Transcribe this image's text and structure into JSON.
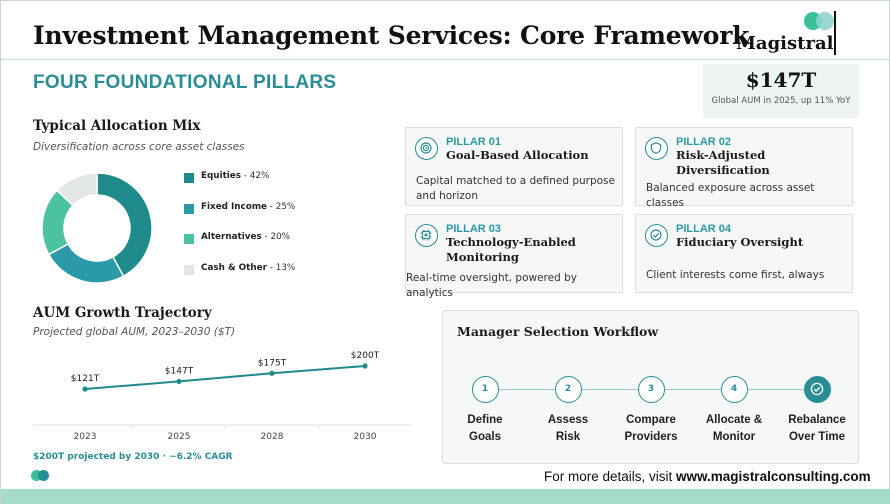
{
  "header": {
    "title": "Investment Management Services: Core Framework",
    "subtitle": "FOUR FOUNDATIONAL PILLARS",
    "logo_text": "Magistral"
  },
  "stat": {
    "value": "$147T",
    "caption": "Global AUM in 2025, up 11% YoY"
  },
  "allocation": {
    "title": "Typical Allocation Mix",
    "subtitle": "Diversification across core asset classes",
    "items": [
      {
        "name": "Equities",
        "pct_label": "42%",
        "value": 42,
        "color": "#1e8a8c"
      },
      {
        "name": "Fixed Income",
        "pct_label": "25%",
        "value": 25,
        "color": "#2a9aa8"
      },
      {
        "name": "Alternatives",
        "pct_label": "20%",
        "value": 20,
        "color": "#4cc3a0"
      },
      {
        "name": "Cash & Other",
        "pct_label": "13%",
        "value": 13,
        "color": "#e3e6e6"
      }
    ]
  },
  "pillars": [
    {
      "num": "PILLAR 01",
      "name": "Goal-Based Allocation",
      "desc_line1": "Capital matched to a defined purpose",
      "desc_line2": "and horizon",
      "icon": "target-icon"
    },
    {
      "num": "PILLAR 02",
      "name": "Risk-Adjusted Diversification",
      "desc_line1": "Balanced exposure across asset classes",
      "desc_line2": "",
      "icon": "shield-icon"
    },
    {
      "num": "PILLAR 03",
      "name_line1": "Technology-Enabled",
      "name_line2": "Monitoring",
      "desc_line1": "Real-time oversight, powered by analytics",
      "desc_line2": "",
      "icon": "chip-icon"
    },
    {
      "num": "PILLAR 04",
      "name": "Fiduciary Oversight",
      "desc_line1": "Client interests come first, always",
      "desc_line2": "",
      "icon": "check-circle-icon"
    }
  ],
  "growth": {
    "title": "AUM Growth Trajectory",
    "subtitle": "Projected global AUM, 2023–2030 ($T)",
    "note": "$200T projected by 2030  ·  ~6.2% CAGR"
  },
  "chart_data": {
    "type": "line",
    "title": "AUM Growth Trajectory",
    "x": [
      "2023",
      "2025",
      "2028",
      "2030"
    ],
    "series": [
      {
        "values": [
          121,
          147,
          175,
          200
        ],
        "labels": [
          "$121T",
          "$147T",
          "$175T",
          "$200T"
        ]
      }
    ],
    "ylim": [
      0,
      230
    ],
    "grid": false,
    "color": "#1e8a8c"
  },
  "workflow": {
    "title": "Manager Selection Workflow",
    "steps": [
      {
        "num": "1",
        "line1": "Define",
        "line2": "Goals"
      },
      {
        "num": "2",
        "line1": "Assess",
        "line2": "Risk"
      },
      {
        "num": "3",
        "line1": "Compare",
        "line2": "Providers"
      },
      {
        "num": "4",
        "line1": "Allocate &",
        "line2": "Monitor"
      },
      {
        "num": "",
        "line1": "Rebalance",
        "line2": "Over Time",
        "icon": "check-icon"
      }
    ]
  },
  "footer": {
    "prefix": "For more details, visit ",
    "url": "www.magistralconsulting.com"
  }
}
